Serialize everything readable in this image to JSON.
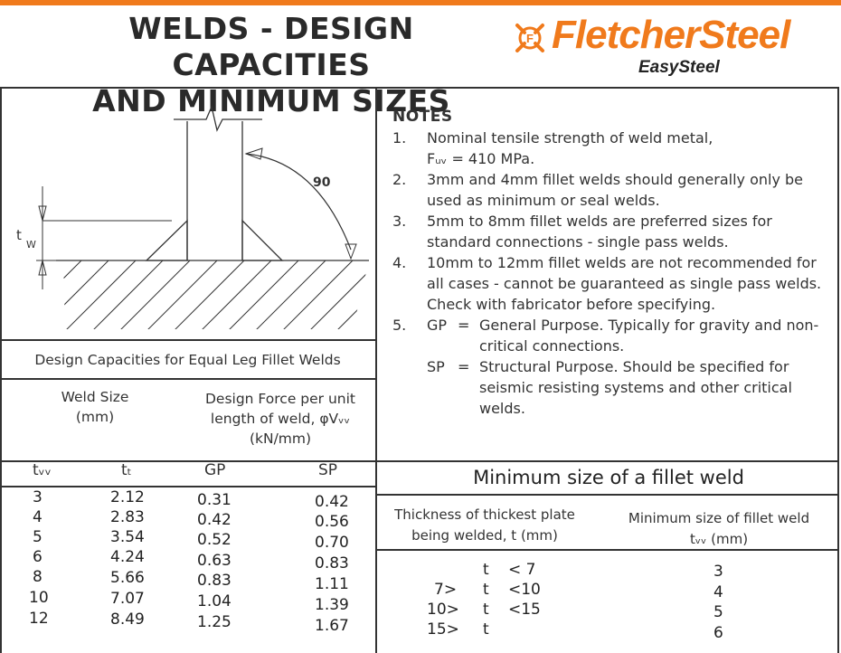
{
  "title": {
    "line1": "WELDS - DESIGN CAPACITIES",
    "line2": "AND MINIMUM SIZES"
  },
  "logo": {
    "brand": "FletcherSteel",
    "tagline": "EasySteel"
  },
  "diagram": {
    "angle_label": "90",
    "tw_label": "t",
    "tw_sub": "W"
  },
  "notes": {
    "heading": "NOTES",
    "items": [
      {
        "num": "1.",
        "lines": [
          "Nominal tensile strength of weld metal,",
          "Fᵤᵥ = 410 MPa."
        ]
      },
      {
        "num": "2.",
        "lines": [
          "3mm and 4mm fillet welds should generally only be",
          "used as minimum or seal welds."
        ]
      },
      {
        "num": "3.",
        "lines": [
          "5mm to 8mm fillet welds are preferred sizes for",
          "standard connections - single pass welds."
        ]
      },
      {
        "num": "4.",
        "lines": [
          "10mm to 12mm fillet welds are not recommended for",
          "all cases - cannot be guaranteed as single pass welds.",
          "Check with fabricator before specifying."
        ]
      },
      {
        "num": "5.",
        "code": "GP",
        "eq": "=",
        "lines": [
          "General Purpose. Typically for gravity and non-",
          "critical connections."
        ]
      },
      {
        "num": "",
        "code": "SP",
        "eq": "=",
        "lines": [
          "Structural Purpose. Should be specified for",
          "seismic resisting systems and other critical",
          "welds."
        ]
      }
    ]
  },
  "capacities": {
    "title": "Design Capacities for Equal Leg Fillet Welds",
    "weld_size_header": [
      "Weld Size",
      "(mm)"
    ],
    "force_header": [
      "Design Force per unit",
      "length of weld, φVᵥᵥ",
      "(kN/mm)"
    ],
    "columns": [
      "tᵥᵥ",
      "tₜ",
      "GP",
      "SP"
    ],
    "rows": [
      [
        "3",
        "2.12",
        "0.31",
        "0.42"
      ],
      [
        "4",
        "2.83",
        "0.42",
        "0.56"
      ],
      [
        "5",
        "3.54",
        "0.52",
        "0.70"
      ],
      [
        "6",
        "4.24",
        "0.63",
        "0.83"
      ],
      [
        "8",
        "5.66",
        "0.83",
        "1.11"
      ],
      [
        "10",
        "7.07",
        "1.04",
        "1.39"
      ],
      [
        "12",
        "8.49",
        "1.25",
        "1.67"
      ]
    ]
  },
  "minimum": {
    "title": "Minimum size of a fillet weld",
    "thickness_header": [
      "Thickness of thickest plate",
      "being welded, t (mm)"
    ],
    "size_header": [
      "Minimum size of fillet weld",
      "tᵥᵥ (mm)"
    ],
    "rows": [
      {
        "low": "",
        "t": "t",
        "high": "< 7",
        "size": "3"
      },
      {
        "low": "7>",
        "t": "t",
        "high": "<10",
        "size": "4"
      },
      {
        "low": "10>",
        "t": "t",
        "high": "<15",
        "size": "5"
      },
      {
        "low": "15>",
        "t": "t",
        "high": "",
        "size": "6"
      }
    ]
  },
  "colors": {
    "brand": "#f07a1c",
    "ink": "#222222"
  }
}
